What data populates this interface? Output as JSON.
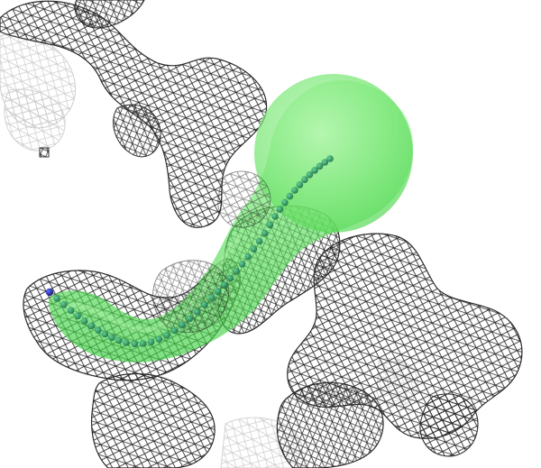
{
  "scene": {
    "background": "#ffffff",
    "mesh_color": "#2a2a2a",
    "mesh_faint_color": "#b8b8b8",
    "tunnel_color": "#5fe35f",
    "tunnel_core_color": "#7cf07c",
    "sphere_color": "#2e8b57",
    "endpoint_color": "#1a237e"
  },
  "icons": {
    "marker": "small-crosshatch-marker-icon"
  }
}
